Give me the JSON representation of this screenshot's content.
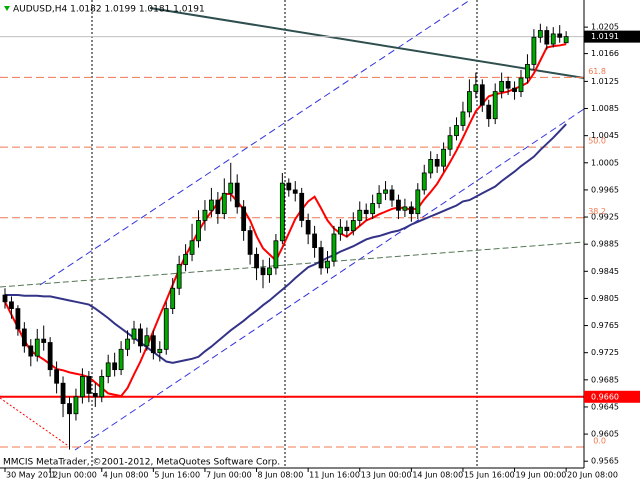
{
  "chart_data": {
    "type": "candlestick",
    "title": "AUDUSD,H4  1.0182 1.0199 1.0181 1.0191",
    "footer": "MMCIS MetaTrader, ©2001-2012, MetaQuotes Software Corp.",
    "categories": [
      "30 May 2012",
      null,
      null,
      null,
      null,
      null,
      null,
      "1 Jun 00:00",
      null,
      null,
      null,
      null,
      null,
      null,
      null,
      "4 Jun 08:00",
      null,
      null,
      null,
      null,
      null,
      null,
      null,
      "5 Jun 16:00",
      null,
      null,
      null,
      null,
      null,
      null,
      null,
      "7 Jun 00:00",
      null,
      null,
      null,
      null,
      null,
      null,
      null,
      "8 Jun 08:00",
      null,
      null,
      null,
      null,
      null,
      null,
      null,
      "11 Jun 16:00",
      null,
      null,
      null,
      null,
      null,
      null,
      null,
      "13 Jun 00:00",
      null,
      null,
      null,
      null,
      null,
      null,
      null,
      "14 Jun 08:00",
      null,
      null,
      null,
      null,
      null,
      null,
      null,
      "15 Jun 16:00",
      null,
      null,
      null,
      null,
      null,
      null,
      null,
      "19 Jun 00:00",
      null,
      null,
      null,
      null,
      null,
      null,
      null,
      "20 Jun 08:00"
    ],
    "open": [
      0.981,
      0.98,
      0.979,
      0.976,
      0.9735,
      0.972,
      0.9745,
      0.974,
      0.97,
      0.968,
      0.965,
      0.9635,
      0.966,
      0.969,
      0.9665,
      0.966,
      0.969,
      0.971,
      0.97,
      0.973,
      0.9745,
      0.976,
      0.9735,
      0.975,
      0.9725,
      0.973,
      0.979,
      0.982,
      0.9855,
      0.987,
      0.989,
      0.992,
      0.9935,
      0.995,
      0.993,
      0.996,
      0.9975,
      0.994,
      0.9905,
      0.987,
      0.985,
      0.984,
      0.985,
      0.989,
      0.9975,
      0.9965,
      0.996,
      0.992,
      0.99,
      0.988,
      0.985,
      0.986,
      0.99,
      0.991,
      0.9905,
      0.992,
      0.9935,
      0.993,
      0.9945,
      0.996,
      0.9965,
      0.995,
      0.9935,
      0.994,
      0.993,
      0.9965,
      0.999,
      1.001,
      1.0,
      1.0025,
      1.0045,
      1.006,
      1.008,
      1.011,
      1.012,
      1.009,
      1.007,
      1.011,
      1.0125,
      1.0115,
      1.011,
      1.013,
      1.015,
      1.019,
      1.02,
      1.018,
      1.0195,
      1.0182
    ],
    "high": [
      0.982,
      0.9808,
      0.9795,
      0.977,
      0.9745,
      0.976,
      0.9765,
      0.9748,
      0.9712,
      0.969,
      0.966,
      0.9672,
      0.9702,
      0.9698,
      0.968,
      0.97,
      0.9722,
      0.9725,
      0.9742,
      0.9758,
      0.9772,
      0.9768,
      0.9762,
      0.9758,
      0.9742,
      0.98,
      0.9835,
      0.9868,
      0.9885,
      0.9915,
      0.9935,
      0.995,
      0.9968,
      0.9962,
      0.9982,
      1.0005,
      0.9988,
      0.995,
      0.9912,
      0.988,
      0.9862,
      0.9865,
      0.99,
      0.999,
      0.9982,
      0.9978,
      0.9968,
      0.993,
      0.9912,
      0.989,
      0.9875,
      0.9912,
      0.9922,
      0.992,
      0.9932,
      0.9948,
      0.9945,
      0.9958,
      0.9972,
      0.9978,
      0.9972,
      0.9958,
      0.9952,
      0.9948,
      0.9975,
      1.0002,
      1.0022,
      1.0018,
      1.0035,
      1.0058,
      1.0072,
      1.0095,
      1.0128,
      1.0138,
      1.0128,
      1.0098,
      1.0122,
      1.0138,
      1.0132,
      1.0125,
      1.0142,
      1.0165,
      1.0202,
      1.021,
      1.0206,
      1.0205,
      1.0208,
      1.0199
    ],
    "low": [
      0.979,
      0.9775,
      0.975,
      0.9725,
      0.9705,
      0.9712,
      0.9728,
      0.969,
      0.9665,
      0.963,
      0.9582,
      0.9625,
      0.965,
      0.9652,
      0.9645,
      0.9652,
      0.968,
      0.969,
      0.9692,
      0.972,
      0.9738,
      0.9725,
      0.9728,
      0.9715,
      0.9712,
      0.9722,
      0.9782,
      0.981,
      0.9845,
      0.986,
      0.988,
      0.9905,
      0.9925,
      0.9915,
      0.9922,
      0.9948,
      0.993,
      0.989,
      0.9855,
      0.9832,
      0.982,
      0.9828,
      0.984,
      0.9885,
      0.9955,
      0.9948,
      0.991,
      0.9885,
      0.9865,
      0.984,
      0.9842,
      0.9852,
      0.989,
      0.9895,
      0.9898,
      0.9912,
      0.992,
      0.9922,
      0.9938,
      0.995,
      0.994,
      0.9922,
      0.9925,
      0.9918,
      0.9922,
      0.9958,
      0.9982,
      0.999,
      0.9992,
      1.0015,
      1.0038,
      1.0052,
      1.0072,
      1.01,
      1.008,
      1.0058,
      1.0062,
      1.01,
      1.0105,
      1.0098,
      1.0102,
      1.0122,
      1.0142,
      1.0182,
      1.0172,
      1.0175,
      1.0182,
      1.0181
    ],
    "close": [
      0.98,
      0.979,
      0.976,
      0.9735,
      0.972,
      0.9745,
      0.974,
      0.97,
      0.968,
      0.965,
      0.9635,
      0.966,
      0.969,
      0.9665,
      0.966,
      0.969,
      0.971,
      0.97,
      0.973,
      0.9745,
      0.976,
      0.9735,
      0.975,
      0.9725,
      0.973,
      0.979,
      0.982,
      0.9855,
      0.987,
      0.989,
      0.992,
      0.9935,
      0.995,
      0.993,
      0.996,
      0.9975,
      0.994,
      0.9905,
      0.987,
      0.985,
      0.984,
      0.985,
      0.989,
      0.9975,
      0.9965,
      0.996,
      0.992,
      0.99,
      0.988,
      0.985,
      0.986,
      0.99,
      0.991,
      0.9905,
      0.992,
      0.9935,
      0.993,
      0.9945,
      0.996,
      0.9965,
      0.995,
      0.9935,
      0.994,
      0.993,
      0.9965,
      0.999,
      1.001,
      1.0,
      1.0025,
      1.0045,
      1.006,
      1.008,
      1.011,
      1.012,
      1.009,
      1.007,
      1.011,
      1.0125,
      1.0115,
      1.011,
      1.013,
      1.015,
      1.019,
      1.02,
      1.018,
      1.0195,
      1.019,
      1.0191
    ],
    "up_color": "#00aa00",
    "down_color": "#000000",
    "lines": [
      {
        "color": "#ff0000",
        "values": [
          0.98,
          0.9781,
          0.9762,
          0.9743,
          0.9728,
          0.9721,
          0.9715,
          0.9708,
          0.9701,
          0.9699,
          0.9696,
          0.9694,
          0.9692,
          0.9689,
          0.9681,
          0.9673,
          0.9665,
          0.9663,
          0.9661,
          0.9673,
          0.9693,
          0.9712,
          0.9734,
          0.9757,
          0.978,
          0.9802,
          0.9825,
          0.9848,
          0.9868,
          0.9886,
          0.9904,
          0.992,
          0.9933,
          0.9946,
          0.9959,
          0.9959,
          0.9948,
          0.9936,
          0.992,
          0.9897,
          0.9879,
          0.987,
          0.9861,
          0.988,
          0.9901,
          0.9922,
          0.9936,
          0.9948,
          0.9955,
          0.9938,
          0.992,
          0.9908,
          0.9901,
          0.9896,
          0.9904,
          0.9912,
          0.992,
          0.9924,
          0.9929,
          0.9933,
          0.9937,
          0.9939,
          0.9938,
          0.9936,
          0.9938,
          0.9951,
          0.9962,
          0.9974,
          0.999,
          1.0006,
          1.0023,
          1.0042,
          1.0062,
          1.0081,
          1.0092,
          1.0103,
          1.0106,
          1.0108,
          1.011,
          1.0114,
          1.0118,
          1.0123,
          1.0137,
          1.0156,
          1.0175,
          1.0177,
          1.0178,
          1.018
        ]
      },
      {
        "color": "#333388",
        "values": [
          0.981,
          0.981,
          0.981,
          0.9809,
          0.9809,
          0.9809,
          0.9808,
          0.9808,
          0.9806,
          0.9804,
          0.9802,
          0.98,
          0.9798,
          0.9796,
          0.979,
          0.9783,
          0.9776,
          0.9768,
          0.9761,
          0.9754,
          0.9747,
          0.974,
          0.9733,
          0.9726,
          0.9719,
          0.9712,
          0.971,
          0.9712,
          0.9714,
          0.9716,
          0.9719,
          0.9727,
          0.9734,
          0.9742,
          0.975,
          0.9758,
          0.9765,
          0.9772,
          0.978,
          0.9787,
          0.9795,
          0.9802,
          0.981,
          0.9818,
          0.9826,
          0.9835,
          0.9843,
          0.9851,
          0.9855,
          0.986,
          0.9865,
          0.9869,
          0.9874,
          0.9878,
          0.9882,
          0.9887,
          0.9892,
          0.9895,
          0.9897,
          0.99,
          0.9903,
          0.9905,
          0.9909,
          0.9914,
          0.9918,
          0.9922,
          0.9926,
          0.993,
          0.9934,
          0.9938,
          0.9942,
          0.9948,
          0.995,
          0.9955,
          0.996,
          0.9965,
          0.997,
          0.9978,
          0.9985,
          0.9992,
          1.0,
          1.0007,
          1.0014,
          1.0024,
          1.0033,
          1.0042,
          1.0052,
          1.0062
        ]
      }
    ],
    "ylim": [
      0.9555,
      1.0245
    ],
    "yticks": [
      1.0205,
      1.0166,
      1.0125,
      1.0085,
      1.0045,
      1.0005,
      0.9965,
      0.9925,
      0.9885,
      0.9845,
      0.9805,
      0.9765,
      0.9725,
      0.9685,
      0.9645,
      0.9605,
      0.9565
    ],
    "last_price": 1.0191,
    "hlines": [
      {
        "value": 0.966,
        "label": "0.9660",
        "color": "#ff0000"
      }
    ],
    "fib_levels": [
      {
        "ratio": 61.8,
        "price": 1.0131
      },
      {
        "ratio": {
          "value": 50,
          "label": "50.0"
        },
        "price": 1.0028
      },
      {
        "ratio": 38.2,
        "price": 0.9924
      },
      {
        "ratio": {
          "value": 0,
          "label": "0.0"
        },
        "price": 0.9586
      }
    ],
    "fib_color": "#f07850"
  }
}
